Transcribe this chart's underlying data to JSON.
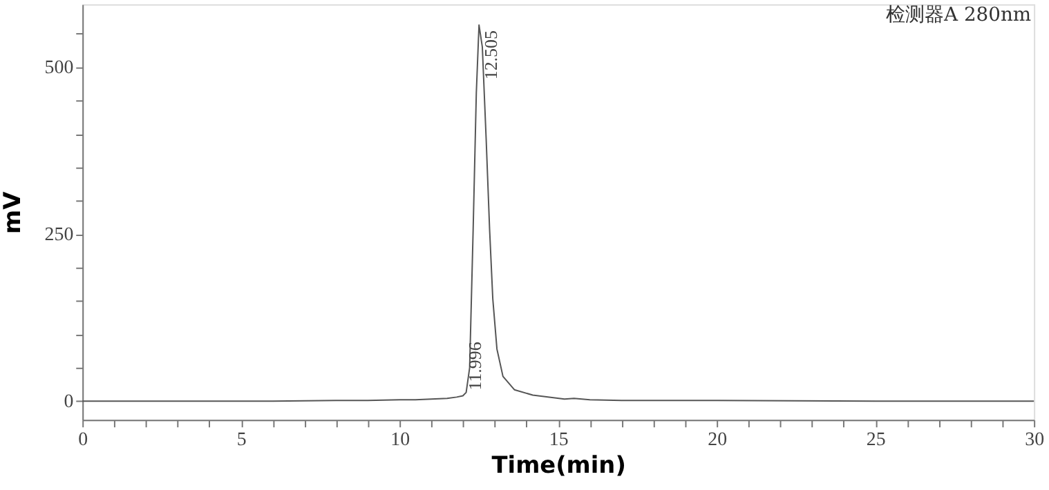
{
  "chart_data": {
    "type": "line",
    "xlabel": "Time(min)",
    "ylabel": "mV",
    "x": [
      0,
      2,
      4,
      6,
      8,
      9,
      10,
      10.5,
      11,
      11.5,
      11.8,
      11.996,
      12.1,
      12.21,
      12.32,
      12.42,
      12.505,
      12.61,
      12.73,
      12.84,
      12.94,
      13.07,
      13.26,
      13.62,
      14.2,
      15.2,
      15.5,
      16,
      17,
      20,
      25,
      30
    ],
    "series": [
      {
        "color": "#555555",
        "values": [
          0,
          0,
          0,
          0,
          1,
          1,
          2,
          2,
          3,
          4,
          6,
          8,
          13,
          50,
          256,
          461,
          563,
          530,
          393,
          256,
          153,
          78,
          37,
          17,
          9,
          3,
          4,
          2,
          1,
          1,
          0,
          0
        ]
      }
    ],
    "xlim": [
      0,
      30
    ],
    "ylim": [
      -28,
      594
    ],
    "xticks": [
      0,
      {
        "value": 1,
        "label": null
      },
      {
        "value": 2,
        "label": null
      },
      {
        "value": 3,
        "label": null
      },
      {
        "value": 4,
        "label": null
      },
      5,
      {
        "value": 6,
        "label": null
      },
      {
        "value": 7,
        "label": null
      },
      {
        "value": 8,
        "label": null
      },
      {
        "value": 9,
        "label": null
      },
      10,
      {
        "value": 11,
        "label": null
      },
      {
        "value": 12,
        "label": null
      },
      {
        "value": 13,
        "label": null
      },
      {
        "value": 14,
        "label": null
      },
      15,
      {
        "value": 16,
        "label": null
      },
      {
        "value": 17,
        "label": null
      },
      {
        "value": 18,
        "label": null
      },
      {
        "value": 19,
        "label": null
      },
      20,
      {
        "value": 21,
        "label": null
      },
      {
        "value": 22,
        "label": null
      },
      {
        "value": 23,
        "label": null
      },
      {
        "value": 24,
        "label": null
      },
      25,
      {
        "value": 26,
        "label": null
      },
      {
        "value": 27,
        "label": null
      },
      {
        "value": 28,
        "label": null
      },
      {
        "value": 29,
        "label": null
      },
      30
    ],
    "yticks": [
      0,
      {
        "value": 50,
        "label": null
      },
      {
        "value": 100,
        "label": null
      },
      {
        "value": 150,
        "label": null
      },
      {
        "value": 200,
        "label": null
      },
      250,
      {
        "value": 300,
        "label": null
      },
      {
        "value": 350,
        "label": null
      },
      {
        "value": 400,
        "label": null
      },
      {
        "value": 450,
        "label": null
      },
      500,
      {
        "value": 550,
        "label": null
      }
    ],
    "annotations": [
      {
        "text": "12.505",
        "x": 12.505,
        "y": 563
      },
      {
        "text": "11.996",
        "x": 11.996,
        "y": 8
      },
      "检测器A 280nm"
    ],
    "grid": false,
    "marker": "none",
    "line_style": "solid"
  }
}
